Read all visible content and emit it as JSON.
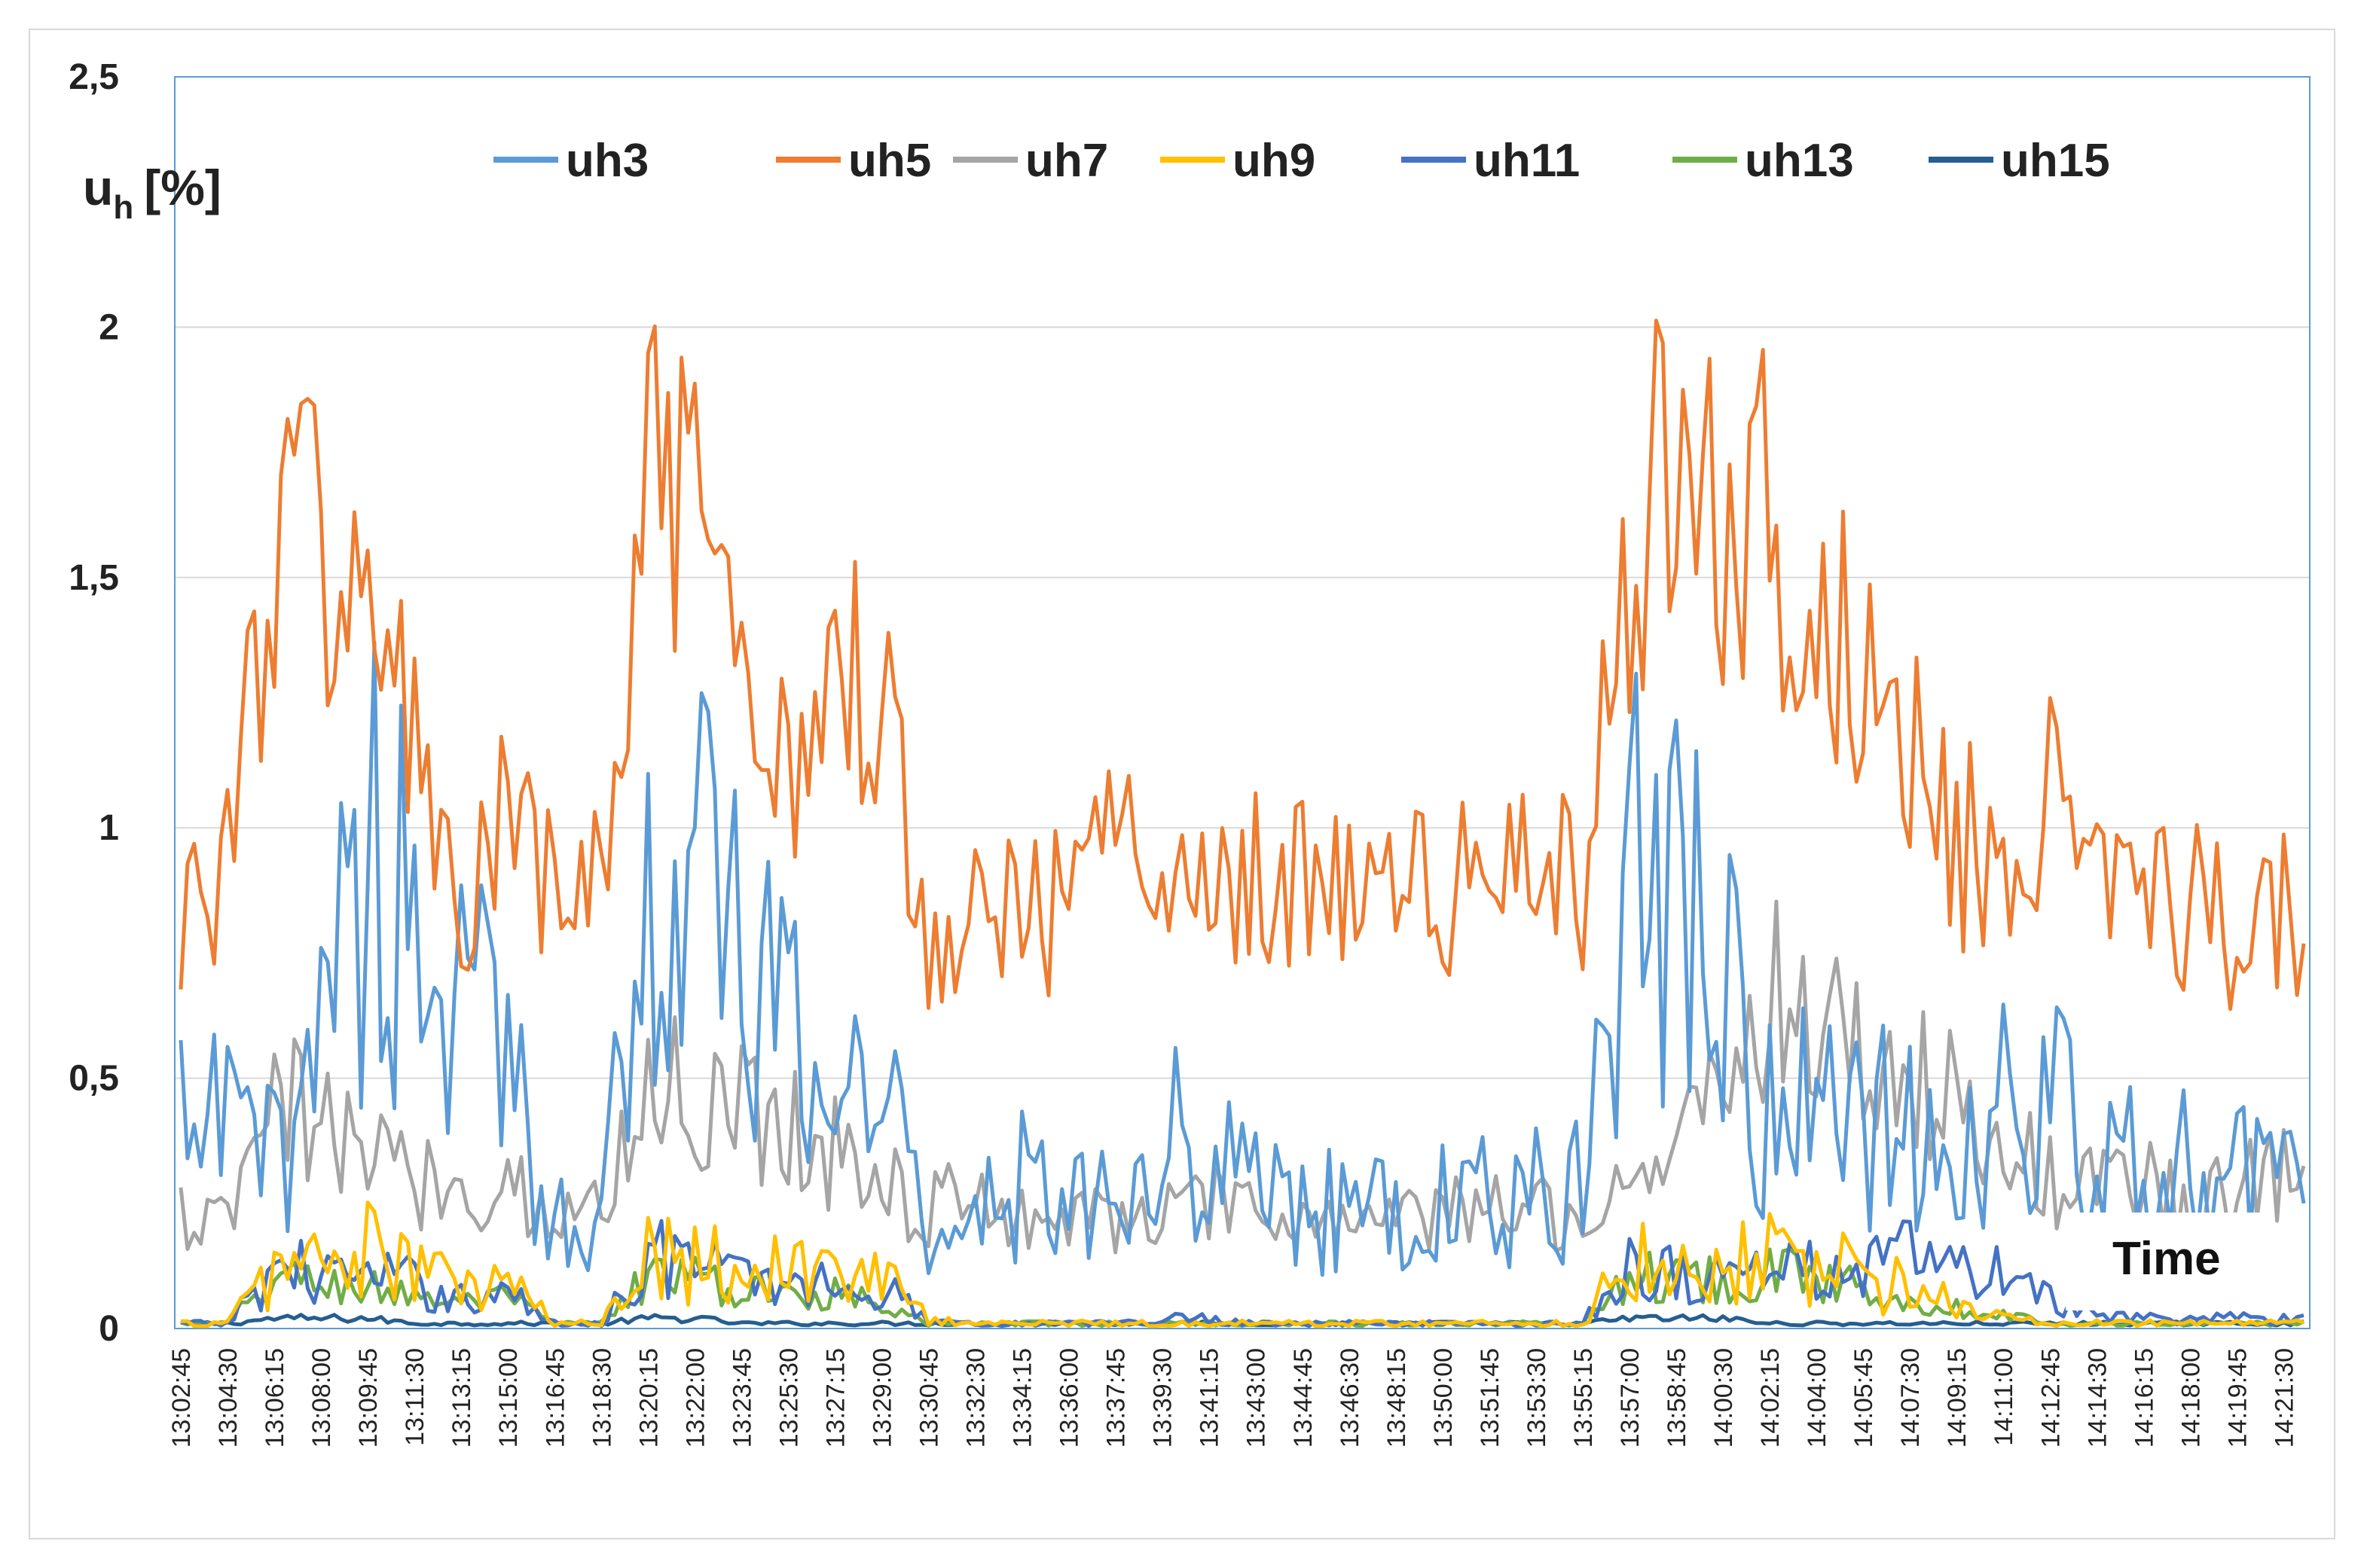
{
  "chart_data": {
    "type": "line",
    "title": "",
    "ylabel_main": "u",
    "ylabel_sub": "h",
    "ylabel_unit": "[%]",
    "xlabel": "Time",
    "ylim": [
      0,
      2.5
    ],
    "yticks": [
      "0",
      "0,5",
      "1",
      "1,5",
      "2",
      "2,5"
    ],
    "ytick_values": [
      0,
      0.5,
      1,
      1.5,
      2,
      2.5
    ],
    "grid": true,
    "legend_position": "top",
    "x_start": "13:02:45",
    "x_end": "14:22:15",
    "sample_interval_s": 15,
    "categories": [
      "13:02:45",
      "13:04:30",
      "13:06:15",
      "13:08:00",
      "13:09:45",
      "13:11:30",
      "13:13:15",
      "13:15:00",
      "13:16:45",
      "13:18:30",
      "13:20:15",
      "13:22:00",
      "13:23:45",
      "13:25:30",
      "13:27:15",
      "13:29:00",
      "13:30:45",
      "13:32:30",
      "13:34:15",
      "13:36:00",
      "13:37:45",
      "13:39:30",
      "13:41:15",
      "13:43:00",
      "13:44:45",
      "13:46:30",
      "13:48:15",
      "13:50:00",
      "13:51:45",
      "13:53:30",
      "13:55:15",
      "13:57:00",
      "13:58:45",
      "14:00:30",
      "14:02:15",
      "14:04:00",
      "14:05:45",
      "14:07:30",
      "14:09:15",
      "14:11:00",
      "14:12:45",
      "14:14:30",
      "14:16:15",
      "14:18:00",
      "14:19:45",
      "14:21:30"
    ],
    "series": [
      {
        "name": "uh3",
        "color": "#5b9bd5",
        "values": [
          0.38,
          0.4,
          0.32,
          0.7,
          0.95,
          0.85,
          0.6,
          0.55,
          0.22,
          0.25,
          0.85,
          0.92,
          0.7,
          0.55,
          0.5,
          0.48,
          0.22,
          0.25,
          0.28,
          0.25,
          0.32,
          0.38,
          0.32,
          0.31,
          0.24,
          0.23,
          0.22,
          0.24,
          0.25,
          0.26,
          0.28,
          0.9,
          0.85,
          0.7,
          0.45,
          0.4,
          0.38,
          0.42,
          0.3,
          0.45,
          0.45,
          0.3,
          0.32,
          0.35,
          0.3,
          0.28
        ]
      },
      {
        "name": "uh5",
        "color": "#ed7d31",
        "values": [
          0.85,
          0.92,
          1.6,
          1.55,
          1.45,
          1.15,
          0.8,
          1.0,
          0.85,
          0.88,
          1.7,
          1.55,
          1.2,
          1.15,
          1.35,
          1.25,
          0.8,
          0.9,
          0.82,
          0.85,
          0.95,
          1.0,
          0.9,
          0.92,
          0.88,
          0.9,
          0.92,
          0.85,
          0.9,
          0.92,
          0.85,
          1.55,
          1.8,
          1.65,
          1.65,
          1.4,
          1.35,
          1.15,
          0.95,
          1.0,
          1.05,
          0.9,
          0.95,
          0.85,
          0.78,
          0.85
        ]
      },
      {
        "name": "uh7",
        "color": "#a5a5a5",
        "values": [
          0.22,
          0.2,
          0.45,
          0.4,
          0.35,
          0.3,
          0.28,
          0.3,
          0.22,
          0.24,
          0.5,
          0.45,
          0.45,
          0.42,
          0.35,
          0.3,
          0.24,
          0.25,
          0.24,
          0.22,
          0.22,
          0.24,
          0.24,
          0.22,
          0.22,
          0.22,
          0.22,
          0.22,
          0.24,
          0.25,
          0.22,
          0.3,
          0.35,
          0.55,
          0.65,
          0.6,
          0.55,
          0.5,
          0.45,
          0.35,
          0.3,
          0.3,
          0.28,
          0.25,
          0.27,
          0.32
        ]
      },
      {
        "name": "uh9",
        "color": "#ffc000",
        "values": [
          0.01,
          0.01,
          0.12,
          0.14,
          0.15,
          0.12,
          0.08,
          0.09,
          0.01,
          0.01,
          0.18,
          0.15,
          0.12,
          0.12,
          0.12,
          0.1,
          0.02,
          0.01,
          0.01,
          0.01,
          0.01,
          0.01,
          0.01,
          0.01,
          0.01,
          0.01,
          0.01,
          0.01,
          0.01,
          0.01,
          0.01,
          0.15,
          0.12,
          0.13,
          0.15,
          0.13,
          0.1,
          0.08,
          0.05,
          0.02,
          0.01,
          0.01,
          0.01,
          0.01,
          0.01,
          0.01
        ]
      },
      {
        "name": "uh11",
        "color": "#4472c4",
        "values": [
          0.01,
          0.01,
          0.12,
          0.11,
          0.1,
          0.09,
          0.06,
          0.07,
          0.01,
          0.01,
          0.15,
          0.13,
          0.1,
          0.09,
          0.09,
          0.08,
          0.02,
          0.01,
          0.01,
          0.01,
          0.01,
          0.02,
          0.02,
          0.01,
          0.01,
          0.01,
          0.01,
          0.01,
          0.01,
          0.01,
          0.01,
          0.13,
          0.11,
          0.1,
          0.12,
          0.12,
          0.11,
          0.15,
          0.12,
          0.1,
          0.06,
          0.02,
          0.02,
          0.02,
          0.02,
          0.02
        ]
      },
      {
        "name": "uh13",
        "color": "#70ad47",
        "values": [
          0.01,
          0.01,
          0.1,
          0.09,
          0.08,
          0.07,
          0.05,
          0.06,
          0.01,
          0.01,
          0.11,
          0.1,
          0.07,
          0.07,
          0.07,
          0.06,
          0.01,
          0.01,
          0.01,
          0.01,
          0.01,
          0.01,
          0.01,
          0.01,
          0.01,
          0.01,
          0.01,
          0.01,
          0.01,
          0.01,
          0.01,
          0.11,
          0.1,
          0.1,
          0.11,
          0.1,
          0.08,
          0.06,
          0.04,
          0.03,
          0.01,
          0.01,
          0.01,
          0.01,
          0.01,
          0.01
        ]
      },
      {
        "name": "uh15",
        "color": "#255e91",
        "values": [
          0.01,
          0.01,
          0.02,
          0.02,
          0.02,
          0.01,
          0.01,
          0.01,
          0.01,
          0.01,
          0.02,
          0.02,
          0.01,
          0.01,
          0.01,
          0.01,
          0.01,
          0.01,
          0.01,
          0.01,
          0.01,
          0.01,
          0.01,
          0.01,
          0.01,
          0.01,
          0.01,
          0.01,
          0.01,
          0.01,
          0.01,
          0.02,
          0.02,
          0.02,
          0.01,
          0.01,
          0.01,
          0.01,
          0.01,
          0.01,
          0.01,
          0.01,
          0.01,
          0.01,
          0.01,
          0.01
        ]
      }
    ]
  }
}
